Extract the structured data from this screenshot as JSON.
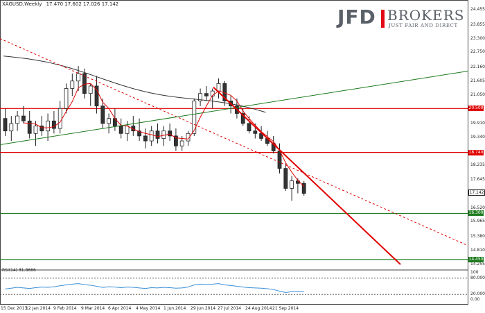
{
  "header": {
    "symbol": "XAGUSD,Weekly",
    "ohlc": "17.470 17.602 17.026 17.142"
  },
  "logo": {
    "brand": "JFD",
    "brokers": "BROKERS",
    "tagline": "JUST FAIR AND DIRECT"
  },
  "price_axis": {
    "labels": [
      "24.455",
      "23.855",
      "23.300",
      "22.750",
      "22.160",
      "21.605",
      "21.050",
      "19.910",
      "19.340",
      "18.235",
      "17.645",
      "16.520",
      "15.965",
      "15.380",
      "14.810",
      "14.255"
    ],
    "current_price": "17.142",
    "levels": [
      {
        "value": "20.500",
        "color": "#e00000"
      },
      {
        "value": "18.740",
        "color": "#e00000"
      },
      {
        "value": "16.300",
        "color": "#1c7a1c"
      },
      {
        "value": "14.450",
        "color": "#1c7a1c"
      }
    ]
  },
  "rsi": {
    "title": "RSI(14) 31.8666",
    "labels": [
      "100",
      "80.0000",
      "20.0000",
      "0.00"
    ]
  },
  "time_axis": {
    "labels": [
      "15 Dec 2013",
      "12 Jan 2014",
      "9 Feb 2014",
      "9 Mar 2014",
      "6 Apr 2014",
      "4 May 2014",
      "1 Jun 2014",
      "29 Jun 2014",
      "27 Jul 2014",
      "24 Aug 2014",
      "21 Sep 2014"
    ]
  },
  "chart_data": {
    "type": "candlestick",
    "symbol": "XAGUSD",
    "timeframe": "Weekly",
    "ylim": [
      14.255,
      24.455
    ],
    "candles": [
      [
        20.1,
        20.5,
        19.4,
        19.6
      ],
      [
        19.6,
        20.2,
        19.2,
        19.9
      ],
      [
        19.9,
        20.4,
        19.6,
        20.2
      ],
      [
        20.2,
        20.6,
        19.9,
        20.0
      ],
      [
        20.0,
        20.4,
        19.3,
        19.5
      ],
      [
        19.5,
        20.0,
        19.0,
        19.8
      ],
      [
        19.8,
        20.2,
        19.4,
        19.6
      ],
      [
        19.6,
        20.3,
        19.2,
        20.0
      ],
      [
        20.0,
        20.4,
        19.5,
        19.7
      ],
      [
        19.7,
        20.8,
        19.5,
        20.5
      ],
      [
        20.5,
        21.5,
        20.3,
        21.3
      ],
      [
        21.3,
        21.9,
        21.0,
        21.6
      ],
      [
        21.6,
        22.2,
        21.2,
        21.9
      ],
      [
        21.9,
        22.1,
        20.9,
        21.1
      ],
      [
        21.1,
        21.5,
        20.6,
        21.4
      ],
      [
        21.4,
        21.8,
        20.3,
        20.6
      ],
      [
        20.6,
        20.9,
        19.7,
        19.9
      ],
      [
        19.9,
        20.3,
        19.5,
        20.1
      ],
      [
        20.1,
        20.5,
        19.6,
        19.8
      ],
      [
        19.8,
        20.1,
        19.3,
        19.5
      ],
      [
        19.5,
        20.0,
        19.2,
        19.8
      ],
      [
        19.8,
        20.2,
        19.4,
        19.6
      ],
      [
        19.6,
        20.1,
        19.2,
        19.4
      ],
      [
        19.4,
        19.7,
        18.9,
        19.2
      ],
      [
        19.2,
        19.8,
        19.0,
        19.6
      ],
      [
        19.6,
        19.9,
        19.1,
        19.3
      ],
      [
        19.3,
        19.8,
        19.0,
        19.6
      ],
      [
        19.6,
        19.9,
        19.2,
        19.4
      ],
      [
        19.4,
        19.7,
        18.8,
        19.0
      ],
      [
        19.0,
        19.4,
        18.8,
        19.2
      ],
      [
        19.2,
        19.6,
        19.0,
        19.5
      ],
      [
        19.5,
        20.9,
        19.4,
        20.8
      ],
      [
        20.8,
        21.3,
        20.6,
        21.1
      ],
      [
        21.1,
        21.4,
        20.8,
        21.0
      ],
      [
        21.0,
        21.3,
        20.5,
        21.2
      ],
      [
        21.2,
        21.7,
        20.9,
        21.5
      ],
      [
        21.5,
        21.6,
        20.6,
        20.8
      ],
      [
        20.8,
        21.0,
        20.3,
        20.6
      ],
      [
        20.6,
        20.9,
        20.1,
        20.3
      ],
      [
        20.3,
        20.5,
        19.8,
        19.9
      ],
      [
        19.9,
        20.2,
        19.5,
        19.6
      ],
      [
        19.6,
        19.9,
        19.3,
        19.5
      ],
      [
        19.5,
        19.8,
        19.2,
        19.3
      ],
      [
        19.3,
        19.6,
        19.0,
        19.1
      ],
      [
        19.1,
        19.4,
        18.7,
        18.8
      ],
      [
        18.8,
        19.1,
        17.9,
        18.1
      ],
      [
        18.1,
        18.3,
        17.2,
        17.3
      ],
      [
        17.3,
        17.8,
        16.8,
        17.6
      ],
      [
        17.6,
        17.7,
        17.1,
        17.5
      ],
      [
        17.5,
        17.6,
        17.0,
        17.1
      ]
    ],
    "levels": [
      20.5,
      18.74,
      16.3,
      14.45
    ],
    "rsi_value": 31.8666,
    "rsi_levels": [
      80,
      20
    ]
  }
}
